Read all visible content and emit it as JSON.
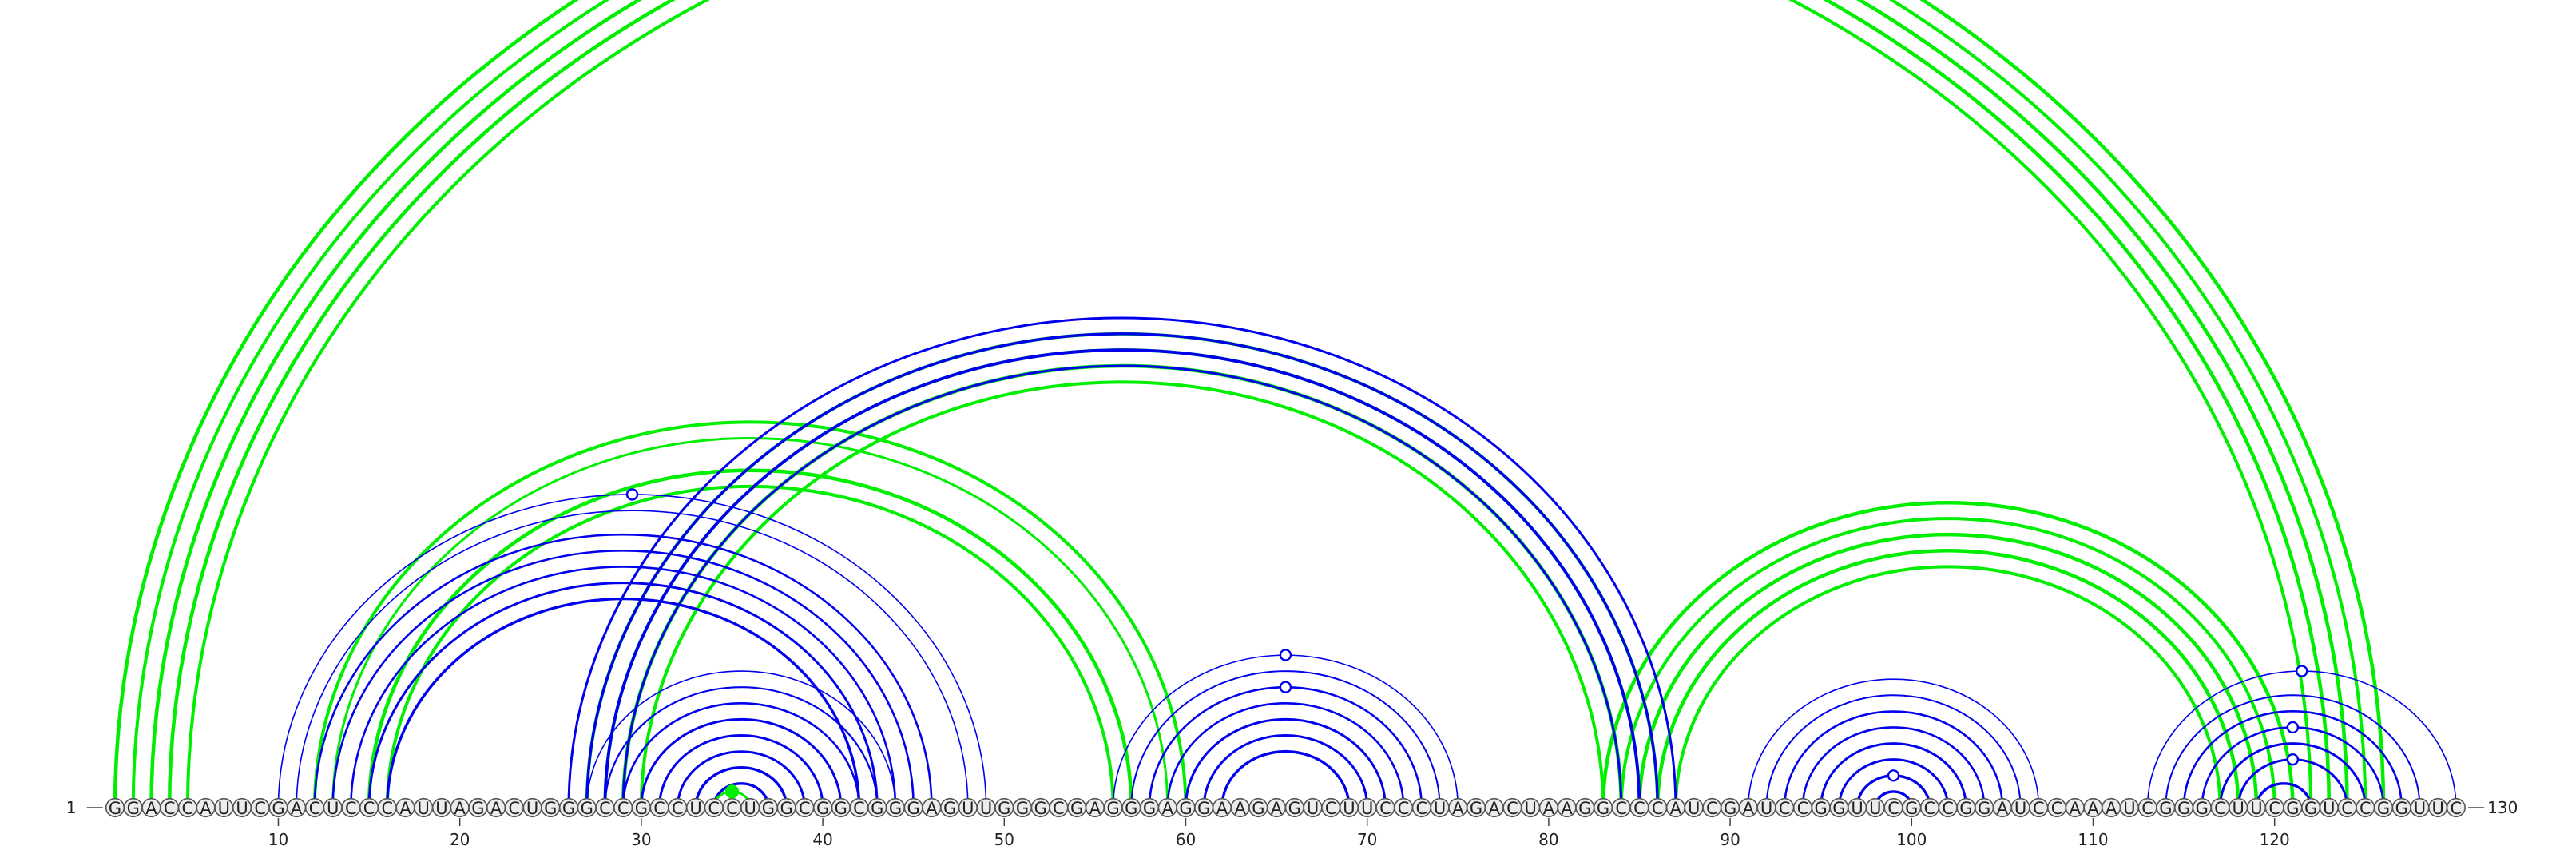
{
  "sequence": "GGACCAUUCGACUCCCAUUAGACUGGGCCGCCUCCUGGCGGCGGGAGUUGGGCGAGGGAGGAAGAGUCUUCCCUAGACUAAGGCCCAUCGAUCCGGUUCGCCGGAUCCAAAUCGGGCUUCGGUCCGGUUC",
  "start_label": "1",
  "end_label": "130",
  "ticks": [
    "10",
    "20",
    "30",
    "40",
    "50",
    "60",
    "70",
    "80",
    "90",
    "100",
    "110",
    "120"
  ],
  "colors": {
    "stem": "#0000ee",
    "pseudoknot": "#00ee00",
    "marker_fill": "#ffffff"
  },
  "stems": [
    {
      "layer": "below",
      "color": "pseudoknot",
      "weight": [
        4.5,
        4,
        4.5,
        4.5,
        4
      ],
      "pairs": [
        [
          1,
          126
        ],
        [
          2,
          125
        ],
        [
          3,
          124
        ],
        [
          4,
          123
        ],
        [
          5,
          122
        ]
      ]
    },
    {
      "layer": "below",
      "color": "pseudoknot",
      "weight": [
        4,
        3,
        4.5,
        4
      ],
      "pairs": [
        [
          12,
          60
        ],
        [
          13,
          59
        ],
        [
          15,
          57
        ],
        [
          16,
          56
        ]
      ]
    },
    {
      "layer": "below",
      "color": "pseudoknot",
      "weight": [
        4,
        4,
        4.5,
        4
      ],
      "pairs": [
        [
          27,
          86
        ],
        [
          28,
          85
        ],
        [
          29,
          84
        ],
        [
          30,
          83
        ]
      ]
    },
    {
      "layer": "below",
      "color": "pseudoknot",
      "weight": [
        4.5,
        4,
        4.5,
        4.5,
        4
      ],
      "pairs": [
        [
          83,
          121
        ],
        [
          84,
          120
        ],
        [
          85,
          119
        ],
        [
          86,
          118
        ],
        [
          87,
          117
        ]
      ]
    },
    {
      "layer": "above",
      "color": "stem",
      "weight": [
        1.6,
        1.6,
        2.6,
        2.6,
        2.6,
        3,
        3.4
      ],
      "pairs": [
        [
          10,
          49
        ],
        [
          11,
          48
        ],
        [
          12,
          46
        ],
        [
          13,
          45
        ],
        [
          14,
          44
        ],
        [
          15,
          43
        ],
        [
          16,
          42
        ]
      ]
    },
    {
      "layer": "above",
      "color": "stem",
      "weight": [
        3,
        3.4,
        3.8,
        3
      ],
      "pairs": [
        [
          26,
          87
        ],
        [
          27,
          86
        ],
        [
          28,
          85
        ],
        [
          29,
          84
        ]
      ]
    },
    {
      "layer": "above",
      "color": "stem",
      "weight": [
        1.6,
        2.2,
        2.6,
        3,
        3,
        3,
        3.4,
        3.4
      ],
      "pairs": [
        [
          27,
          44
        ],
        [
          28,
          43
        ],
        [
          29,
          42
        ],
        [
          30,
          41
        ],
        [
          31,
          40
        ],
        [
          32,
          39
        ],
        [
          33,
          38
        ],
        [
          34,
          37
        ]
      ]
    },
    {
      "layer": "above",
      "color": "stem",
      "weight": [
        1.6,
        2,
        2.6,
        2.6,
        3,
        3,
        3.4
      ],
      "pairs": [
        [
          56,
          75
        ],
        [
          57,
          74
        ],
        [
          58,
          73
        ],
        [
          59,
          72
        ],
        [
          60,
          71
        ],
        [
          61,
          70
        ],
        [
          62,
          69
        ]
      ]
    },
    {
      "layer": "above",
      "color": "stem",
      "weight": [
        1.6,
        2,
        2.6,
        2.6,
        3,
        3,
        3.4,
        3.4
      ],
      "pairs": [
        [
          91,
          107
        ],
        [
          92,
          106
        ],
        [
          93,
          105
        ],
        [
          94,
          104
        ],
        [
          95,
          103
        ],
        [
          96,
          102
        ],
        [
          97,
          101
        ],
        [
          98,
          100
        ]
      ]
    },
    {
      "layer": "above",
      "color": "stem",
      "weight": [
        1.6,
        2,
        2.6,
        2.6,
        3,
        3,
        3.4
      ],
      "pairs": [
        [
          113,
          130
        ],
        [
          114,
          128
        ],
        [
          115,
          127
        ],
        [
          116,
          126
        ],
        [
          117,
          125
        ],
        [
          118,
          124
        ],
        [
          119,
          122
        ]
      ]
    },
    {
      "layer": "above",
      "color": "pseudoknot",
      "weight": [
        3
      ],
      "pairs": [
        [
          34,
          36
        ]
      ]
    }
  ],
  "markers": [
    {
      "i": 10,
      "j": 49,
      "color": "stem",
      "filled": false
    },
    {
      "i": 56,
      "j": 75,
      "color": "stem",
      "filled": false
    },
    {
      "i": 58,
      "j": 73,
      "color": "stem",
      "filled": false
    },
    {
      "i": 97,
      "j": 101,
      "color": "stem",
      "filled": false
    },
    {
      "i": 113,
      "j": 130,
      "color": "stem",
      "filled": false
    },
    {
      "i": 116,
      "j": 126,
      "color": "stem",
      "filled": false
    },
    {
      "i": 118,
      "j": 124,
      "color": "stem",
      "filled": false
    },
    {
      "i": 34,
      "j": 36,
      "color": "pseudoknot",
      "filled": true
    }
  ]
}
